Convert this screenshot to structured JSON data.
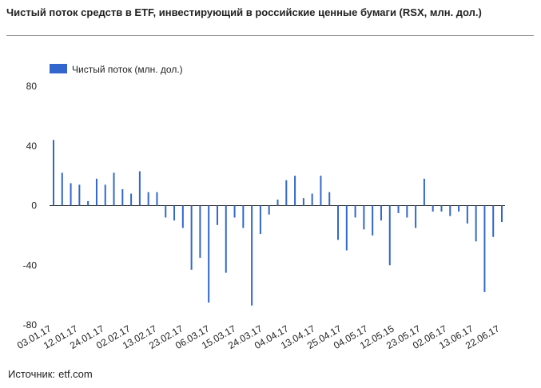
{
  "title": "Чистый поток средств в ETF, инвестирующий в российские ценные бумаги (RSX, млн. дол.)",
  "source": {
    "label": "Источник:",
    "value": "etf.com"
  },
  "chart_data": {
    "type": "bar",
    "legend": "top-left",
    "grid": false,
    "ylim": [
      -80,
      80
    ],
    "yticks": [
      80,
      40,
      0,
      -40,
      -80
    ],
    "xticks": [
      "03.01.17",
      "12.01.17",
      "24.01.17",
      "02.02.17",
      "13.02.17",
      "23.02.17",
      "06.03.17",
      "15.03.17",
      "24.03.17",
      "04.04.17",
      "13.04.17",
      "25.04.17",
      "04.05.17",
      "12.05.15",
      "23.05.17",
      "02.06.17",
      "13.06.17",
      "22.06.17"
    ],
    "series": [
      {
        "name": "Чистый поток (млн. дол.)",
        "color": "#3366cc",
        "values": [
          44,
          22,
          15,
          14,
          3,
          18,
          14,
          22,
          11,
          8,
          23,
          9,
          9,
          -8,
          -10,
          -15,
          -43,
          -35,
          -65,
          -13,
          -45,
          -8,
          -15,
          -67,
          -19,
          -6,
          4,
          17,
          20,
          5,
          8,
          20,
          9,
          -23,
          -30,
          -8,
          -16,
          -20,
          -10,
          -40,
          -5,
          -8,
          -15,
          18,
          -4,
          -4,
          -7,
          -4,
          -12,
          -24,
          -58,
          -21,
          -11
        ]
      }
    ]
  }
}
